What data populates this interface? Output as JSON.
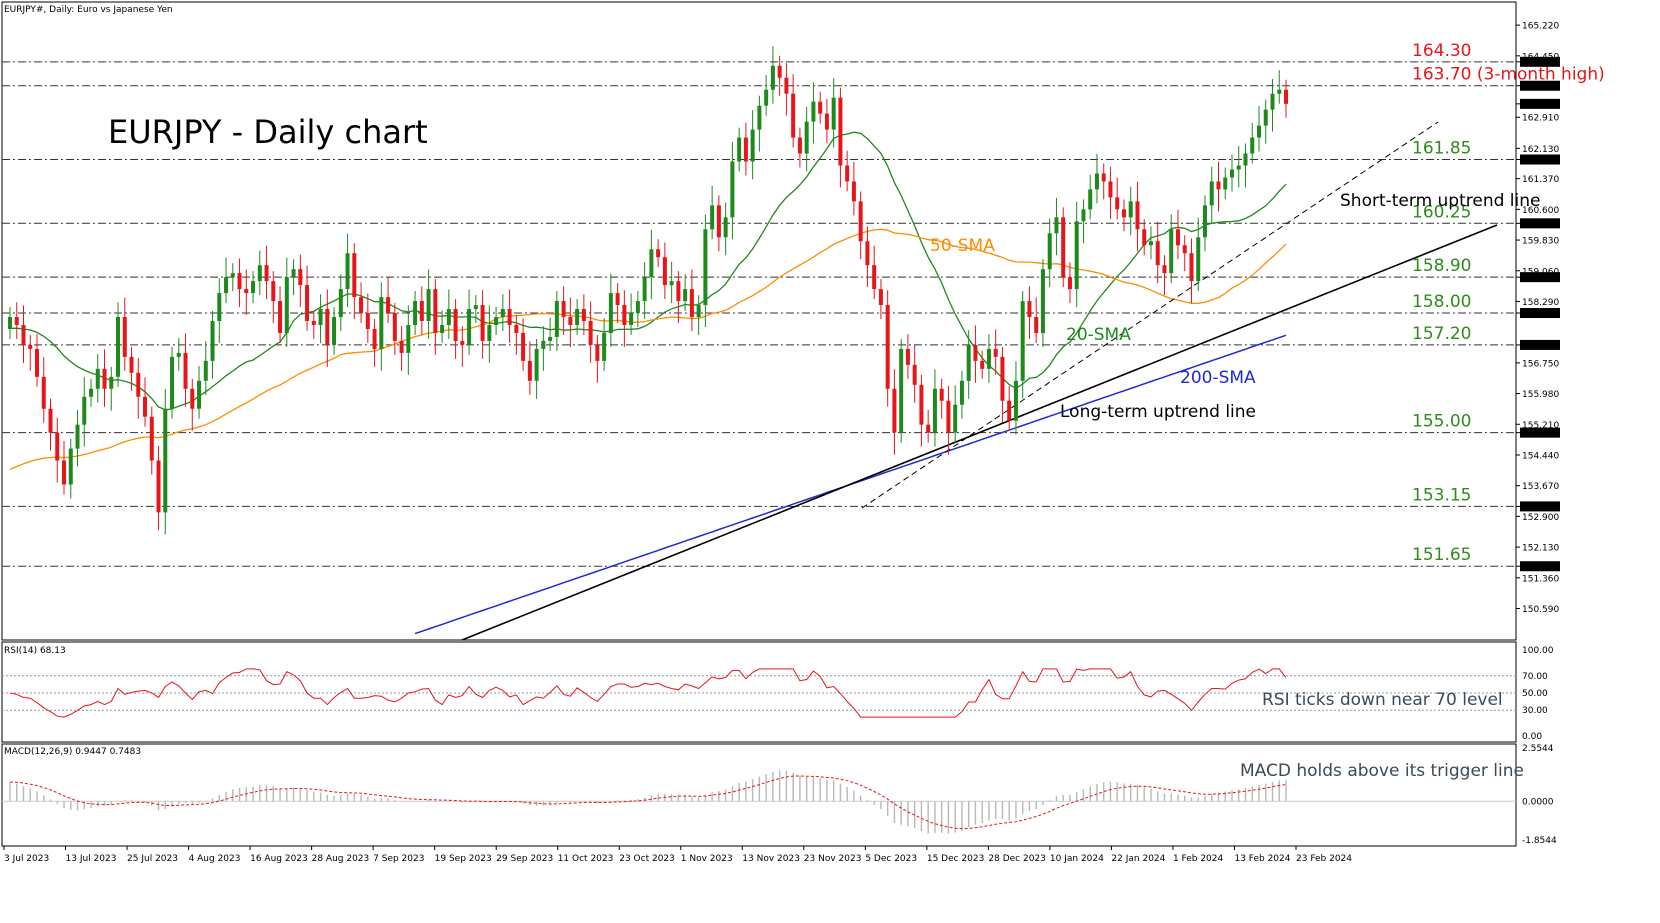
{
  "chart_data": {
    "type": "candlestick",
    "title": "EURJPY - Daily chart",
    "header": "EURJPY#, Daily:  Euro vs Japanese Yen",
    "price_axis": {
      "ticks": [
        "165.220",
        "164.450",
        "164.300",
        "163.700",
        "163.246",
        "162.910",
        "162.130",
        "161.850",
        "161.370",
        "160.600",
        "160.250",
        "159.830",
        "159.060",
        "158.900",
        "158.290",
        "158.000",
        "157.200",
        "156.750",
        "155.980",
        "155.210",
        "155.000",
        "154.440",
        "153.670",
        "153.150",
        "152.900",
        "152.130",
        "151.650",
        "151.360",
        "150.590"
      ],
      "ylim": [
        149.8,
        165.8
      ]
    },
    "levels": [
      {
        "value": 164.3,
        "label": "164.30",
        "axis_label": "164.300",
        "color": "#e8151b"
      },
      {
        "value": 163.7,
        "label": "163.70 (3-month high)",
        "axis_label": "163.700",
        "color": "#e8151b"
      },
      {
        "value": 161.85,
        "label": "161.85",
        "axis_label": "161.850",
        "color": "#2e8b1e"
      },
      {
        "value": 160.25,
        "label": "160.25",
        "axis_label": "160.250",
        "color": "#2e8b1e"
      },
      {
        "value": 158.9,
        "label": "158.90",
        "axis_label": "158.900",
        "color": "#2e8b1e"
      },
      {
        "value": 158.0,
        "label": "158.00",
        "axis_label": "158.000",
        "color": "#2e8b1e"
      },
      {
        "value": 157.2,
        "label": "157.20",
        "axis_label": "157.200",
        "color": "#2e8b1e"
      },
      {
        "value": 155.0,
        "label": "155.00",
        "axis_label": "155.000",
        "color": "#2e8b1e"
      },
      {
        "value": 153.15,
        "label": "153.15",
        "axis_label": "153.150",
        "color": "#2e8b1e"
      },
      {
        "value": 151.65,
        "label": "151.65",
        "axis_label": "151.650",
        "color": "#2e8b1e"
      }
    ],
    "current_price": "163.246",
    "dates": [
      "3 Jul 2023",
      "13 Jul 2023",
      "25 Jul 2023",
      "4 Aug 2023",
      "16 Aug 2023",
      "28 Aug 2023",
      "7 Sep 2023",
      "19 Sep 2023",
      "29 Sep 2023",
      "11 Oct 2023",
      "23 Oct 2023",
      "1 Nov 2023",
      "13 Nov 2023",
      "23 Nov 2023",
      "5 Dec 2023",
      "15 Dec 2023",
      "28 Dec 2023",
      "10 Jan 2024",
      "22 Jan 2024",
      "1 Feb 2024",
      "13 Feb 2024",
      "23 Feb 2024"
    ],
    "ohlc_close": [
      157.9,
      157.7,
      157.2,
      157.1,
      156.4,
      155.6,
      155.0,
      154.3,
      153.7,
      154.6,
      155.2,
      155.9,
      156.1,
      156.6,
      156.1,
      156.4,
      157.9,
      156.9,
      156.5,
      155.9,
      155.4,
      154.3,
      153.0,
      155.6,
      156.9,
      157.0,
      156.1,
      155.6,
      156.3,
      156.8,
      157.8,
      158.5,
      158.9,
      159.0,
      158.6,
      158.5,
      158.8,
      159.2,
      158.8,
      158.3,
      157.5,
      158.9,
      159.1,
      158.7,
      157.8,
      157.7,
      158.1,
      157.2,
      157.9,
      158.6,
      159.5,
      158.4,
      158.0,
      157.6,
      157.1,
      158.4,
      158.0,
      157.3,
      157.0,
      157.7,
      158.3,
      157.8,
      158.6,
      157.5,
      157.7,
      158.1,
      157.3,
      157.2,
      158.1,
      158.2,
      157.3,
      157.7,
      157.9,
      158.1,
      157.7,
      157.5,
      156.8,
      156.3,
      157.1,
      157.3,
      157.4,
      158.3,
      157.9,
      157.7,
      158.1,
      157.8,
      157.2,
      156.8,
      157.5,
      158.5,
      158.2,
      157.7,
      158.0,
      158.3,
      158.9,
      159.6,
      159.4,
      158.7,
      158.8,
      158.3,
      158.6,
      157.9,
      158.2,
      160.1,
      160.7,
      159.9,
      160.4,
      161.8,
      162.4,
      161.8,
      162.6,
      163.2,
      163.6,
      164.2,
      163.9,
      163.5,
      162.4,
      162.0,
      162.8,
      163.3,
      163.0,
      162.6,
      163.4,
      161.7,
      161.3,
      160.8,
      159.8,
      159.2,
      158.6,
      158.2,
      156.1,
      155.0,
      157.1,
      156.7,
      156.2,
      155.2,
      155.0,
      156.1,
      155.8,
      155.0,
      155.7,
      156.3,
      157.2,
      156.8,
      156.6,
      157.1,
      156.9,
      155.8,
      155.3,
      156.3,
      158.3,
      157.9,
      157.5,
      159.1,
      160.0,
      160.4,
      158.9,
      158.6,
      160.3,
      160.6,
      161.1,
      161.5,
      161.3,
      160.9,
      160.6,
      160.4,
      160.8,
      160.1,
      159.7,
      159.8,
      159.2,
      159.0,
      160.1,
      159.7,
      159.5,
      158.8,
      159.9,
      160.7,
      161.3,
      161.1,
      161.4,
      161.6,
      161.7,
      162.0,
      162.4,
      162.7,
      163.1,
      163.5,
      163.6,
      163.246
    ],
    "sma_labels": [
      {
        "label": "20-SMA",
        "color": "#1e8a1e"
      },
      {
        "label": "50-SMA",
        "color": "#ff8c00"
      },
      {
        "label": "200-SMA",
        "color": "#1c2bd1"
      }
    ],
    "trendlines": [
      {
        "label": "Short-term uptrend line",
        "style": "dashed"
      },
      {
        "label": "Long-term uptrend line",
        "style": "solid"
      }
    ],
    "rsi": {
      "title": "RSI(14) 68.13",
      "ticks": [
        "100.00",
        "70.00",
        "50.00",
        "30.00",
        "0.00"
      ],
      "levels": [
        70,
        50,
        30
      ],
      "note": "RSI ticks down near 70 level",
      "ylim": [
        0,
        100
      ]
    },
    "macd": {
      "title": "MACD(12,26,9) 0.9447 0.7483",
      "ticks": [
        "2.5544",
        "0.0000",
        "-1.8544"
      ],
      "note": "MACD holds above its trigger line",
      "ylim": [
        -1.8544,
        2.5544
      ]
    },
    "colors": {
      "up": "#1e8a1e",
      "down": "#e8151b",
      "sma20": "#1e8a1e",
      "sma50": "#ff8c00",
      "sma200": "#1c2bd1",
      "rsi": "#e8151b",
      "macd_hist": "#b8b8b8",
      "macd_signal": "#e8151b"
    }
  }
}
